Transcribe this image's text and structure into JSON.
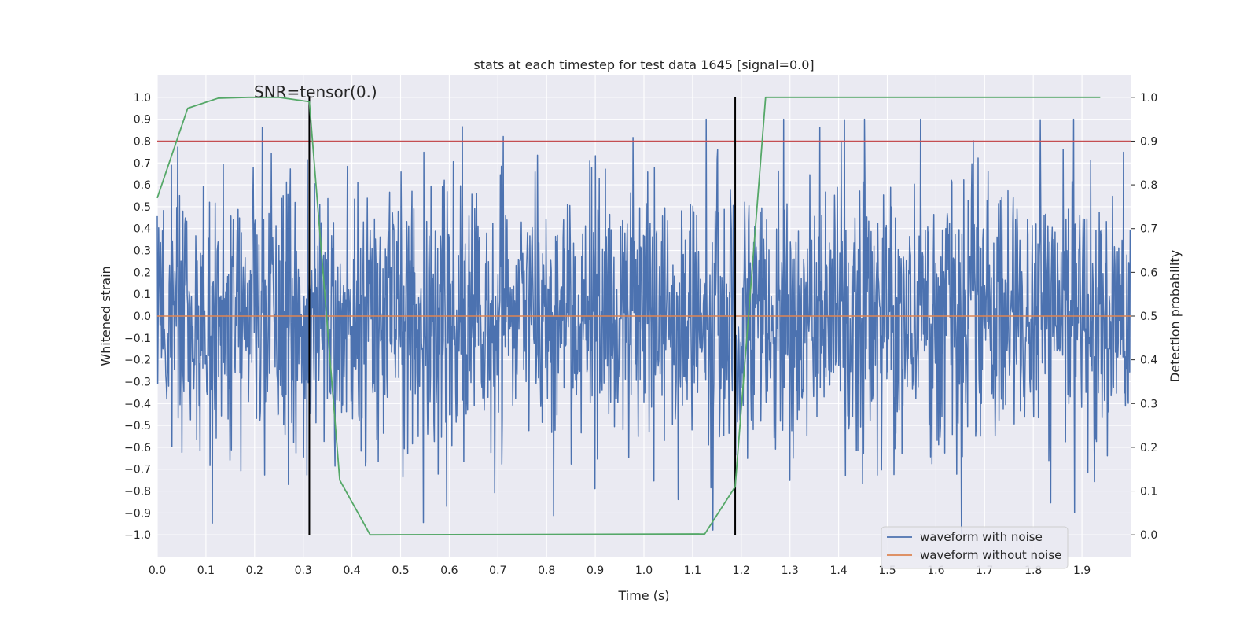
{
  "chart_data": {
    "type": "line",
    "title": "stats at each timestep for test data 1645 [signal=0.0]",
    "xlabel": "Time (s)",
    "ylabel": "Whitened strain",
    "y2label": "Detection probability",
    "annotation": "SNR=tensor(0.)",
    "xlim": [
      0.0,
      2.0
    ],
    "ylim": [
      -1.1,
      1.1
    ],
    "y2lim": [
      -0.05,
      1.05
    ],
    "xticks": [
      0.0,
      0.1,
      0.2,
      0.3,
      0.4,
      0.5,
      0.6,
      0.7,
      0.8,
      0.9,
      1.0,
      1.1,
      1.2,
      1.3,
      1.4,
      1.5,
      1.6,
      1.7,
      1.8,
      1.9
    ],
    "yticks": [
      1.0,
      0.9,
      0.8,
      0.7,
      0.6,
      0.5,
      0.4,
      0.3,
      0.2,
      0.1,
      0.0,
      -0.1,
      -0.2,
      -0.3,
      -0.4,
      -0.5,
      -0.6,
      -0.7,
      -0.8,
      -0.9,
      -1.0
    ],
    "y2ticks": [
      1.0,
      0.9,
      0.8,
      0.7,
      0.6,
      0.5,
      0.4,
      0.3,
      0.2,
      0.1,
      0.0
    ],
    "legend": {
      "placement": "lower-right",
      "entries": [
        {
          "label": "waveform with noise",
          "color": "#4c72b0"
        },
        {
          "label": "waveform without noise",
          "color": "#dd8452"
        }
      ]
    },
    "series": [
      {
        "name": "waveform with noise",
        "axis": "left",
        "color": "#4c72b0",
        "kind": "noise",
        "x_range": [
          0.0,
          2.0
        ],
        "samples": 2048,
        "std_approx": 0.3,
        "range_approx": [
          -1.0,
          0.9
        ]
      },
      {
        "name": "waveform without noise",
        "axis": "left",
        "color": "#dd8452",
        "x": [
          0.0,
          2.0
        ],
        "y": [
          0.0,
          0.0
        ]
      },
      {
        "name": "detection probability",
        "axis": "right",
        "color": "#55a868",
        "x": [
          0.0,
          0.0625,
          0.125,
          0.1875,
          0.25,
          0.3125,
          0.375,
          0.4375,
          1.125,
          1.1875,
          1.25,
          1.9375
        ],
        "y": [
          0.77,
          0.975,
          0.998,
          1.0,
          1.0,
          0.99,
          0.125,
          0.0,
          0.002,
          0.11,
          1.0,
          1.0
        ]
      }
    ],
    "threshold": {
      "axis": "right",
      "value": 0.9,
      "color": "#c44e52"
    },
    "vlines": [
      {
        "x": 0.3125,
        "ymin": -1.0,
        "ymax": 1.0,
        "color": "#000000"
      },
      {
        "x": 1.1875,
        "ymin": -1.0,
        "ymax": 1.0,
        "color": "#000000"
      }
    ]
  }
}
